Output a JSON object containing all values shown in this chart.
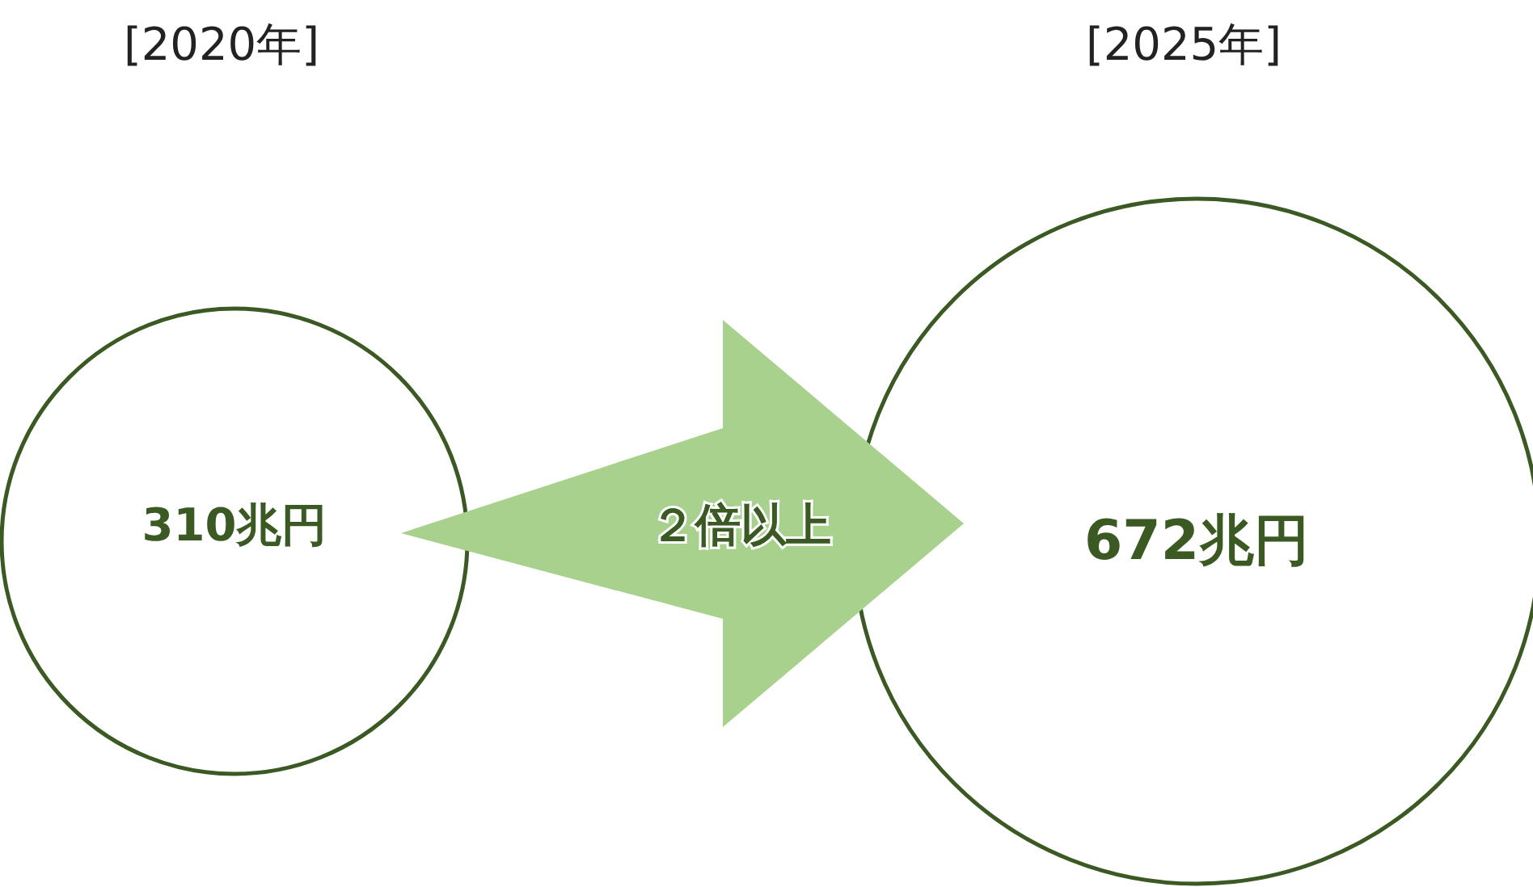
{
  "chart_data": {
    "type": "other",
    "categories": [
      "[2020年]",
      "[2025年]"
    ],
    "values": [
      310,
      672
    ],
    "value_labels": [
      "310兆円",
      "672兆円"
    ],
    "color": "#3b5a23",
    "annotations": [
      "２倍以上"
    ]
  }
}
